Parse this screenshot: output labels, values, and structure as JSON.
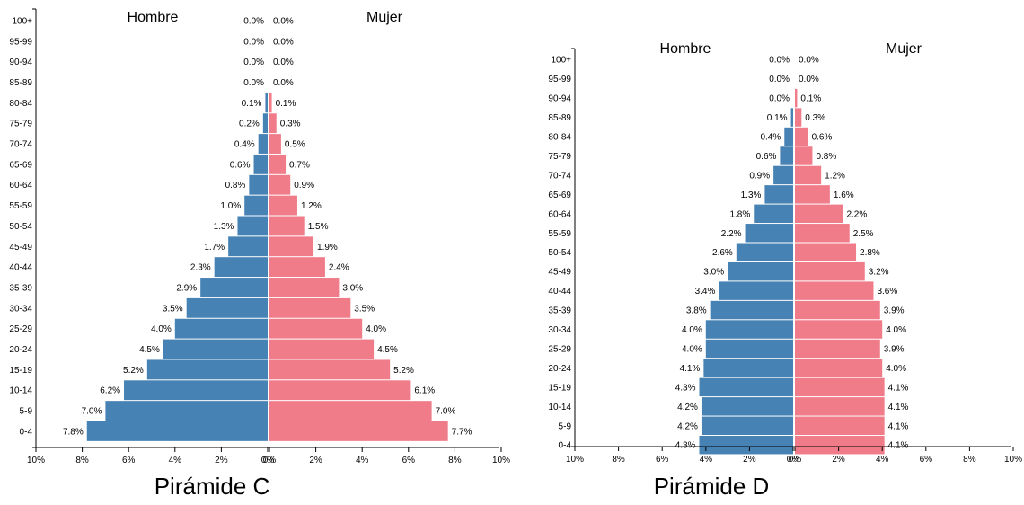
{
  "colors": {
    "male": "#4682b4",
    "female": "#f07c8a",
    "axis": "#000000"
  },
  "chart_data": [
    {
      "type": "bar",
      "title": "Pirámide C",
      "male_label": "Hombre",
      "female_label": "Mujer",
      "categories": [
        "100+",
        "95-99",
        "90-94",
        "85-89",
        "80-84",
        "75-79",
        "70-74",
        "65-69",
        "60-64",
        "55-59",
        "50-54",
        "45-49",
        "40-44",
        "35-39",
        "30-34",
        "25-29",
        "20-24",
        "15-19",
        "10-14",
        "5-9",
        "0-4"
      ],
      "series": [
        {
          "name": "Hombre",
          "values": [
            0.0,
            0.0,
            0.0,
            0.0,
            0.1,
            0.2,
            0.4,
            0.6,
            0.8,
            1.0,
            1.3,
            1.7,
            2.3,
            2.9,
            3.5,
            4.0,
            4.5,
            5.2,
            6.2,
            7.0,
            7.8
          ],
          "labels": [
            "0.0%",
            "0.0%",
            "0.0%",
            "0.0%",
            "0.1%",
            "0.2%",
            "0.4%",
            "0.6%",
            "0.8%",
            "1.0%",
            "1.3%",
            "1.7%",
            "2.3%",
            "2.9%",
            "3.5%",
            "4.0%",
            "4.5%",
            "5.2%",
            "6.2%",
            "7.0%",
            "7.8%"
          ]
        },
        {
          "name": "Mujer",
          "values": [
            0.0,
            0.0,
            0.0,
            0.0,
            0.1,
            0.3,
            0.5,
            0.7,
            0.9,
            1.2,
            1.5,
            1.9,
            2.4,
            3.0,
            3.5,
            4.0,
            4.5,
            5.2,
            6.1,
            7.0,
            7.7
          ],
          "labels": [
            "0.0%",
            "0.0%",
            "0.0%",
            "0.0%",
            "0.1%",
            "0.3%",
            "0.5%",
            "0.7%",
            "0.9%",
            "1.2%",
            "1.5%",
            "1.9%",
            "2.4%",
            "3.0%",
            "3.5%",
            "4.0%",
            "4.5%",
            "5.2%",
            "6.1%",
            "7.0%",
            "7.7%"
          ]
        }
      ],
      "xlim": [
        -10,
        10
      ],
      "ticks": [
        "10%",
        "8%",
        "6%",
        "4%",
        "2%",
        "0%",
        "0%",
        "2%",
        "4%",
        "6%",
        "8%",
        "10%"
      ]
    },
    {
      "type": "bar",
      "title": "Pirámide D",
      "male_label": "Hombre",
      "female_label": "Mujer",
      "categories": [
        "100+",
        "95-99",
        "90-94",
        "85-89",
        "80-84",
        "75-79",
        "70-74",
        "65-69",
        "60-64",
        "55-59",
        "50-54",
        "45-49",
        "40-44",
        "35-39",
        "30-34",
        "25-29",
        "20-24",
        "15-19",
        "10-14",
        "5-9",
        "0-4"
      ],
      "series": [
        {
          "name": "Hombre",
          "values": [
            0.0,
            0.0,
            0.0,
            0.1,
            0.4,
            0.6,
            0.9,
            1.3,
            1.8,
            2.2,
            2.6,
            3.0,
            3.4,
            3.8,
            4.0,
            4.0,
            4.1,
            4.3,
            4.2,
            4.2,
            4.3
          ],
          "labels": [
            "0.0%",
            "0.0%",
            "0.0%",
            "0.1%",
            "0.4%",
            "0.6%",
            "0.9%",
            "1.3%",
            "1.8%",
            "2.2%",
            "2.6%",
            "3.0%",
            "3.4%",
            "3.8%",
            "4.0%",
            "4.0%",
            "4.1%",
            "4.3%",
            "4.2%",
            "4.2%",
            "4.3%"
          ]
        },
        {
          "name": "Mujer",
          "values": [
            0.0,
            0.0,
            0.1,
            0.3,
            0.6,
            0.8,
            1.2,
            1.6,
            2.2,
            2.5,
            2.8,
            3.2,
            3.6,
            3.9,
            4.0,
            3.9,
            4.0,
            4.1,
            4.1,
            4.1,
            4.1
          ],
          "labels": [
            "0.0%",
            "0.0%",
            "0.1%",
            "0.3%",
            "0.6%",
            "0.8%",
            "1.2%",
            "1.6%",
            "2.2%",
            "2.5%",
            "2.8%",
            "3.2%",
            "3.6%",
            "3.9%",
            "4.0%",
            "3.9%",
            "4.0%",
            "4.1%",
            "4.1%",
            "4.1%",
            "4.1%"
          ]
        }
      ],
      "xlim": [
        -10,
        10
      ],
      "ticks": [
        "10%",
        "8%",
        "6%",
        "4%",
        "2%",
        "0%",
        "0%",
        "2%",
        "4%",
        "6%",
        "8%",
        "10%"
      ]
    }
  ]
}
